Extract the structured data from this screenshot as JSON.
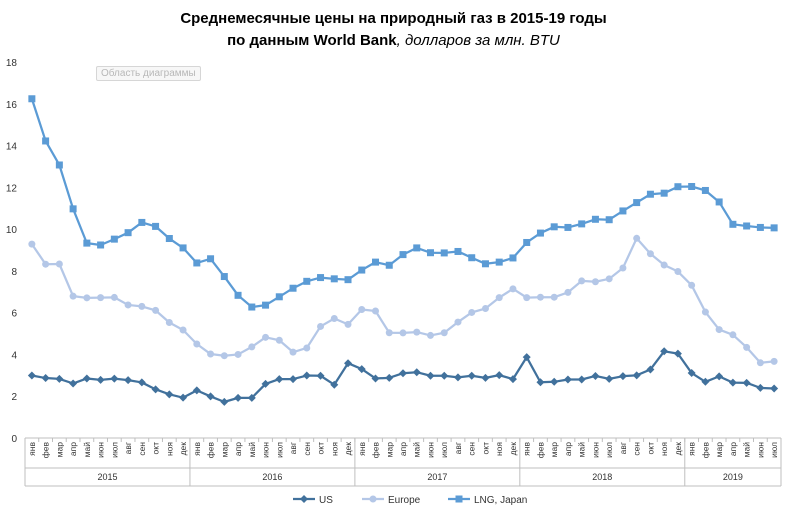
{
  "chart_data": {
    "type": "line",
    "title_line1": "Среднемесячные цены на природный газ в 2015-19 годы",
    "title_line2_bold": "по данным World Bank",
    "title_line2_italic": ", долларов за млн. BTU",
    "tooltip": "Область диаграммы",
    "ylim": [
      0,
      18
    ],
    "yticks": [
      0,
      2,
      4,
      6,
      8,
      10,
      12,
      14,
      16,
      18
    ],
    "grid": false,
    "legend_position": "bottom",
    "months": [
      "янв",
      "фев",
      "мар",
      "апр",
      "май",
      "июн",
      "июл",
      "авг",
      "сен",
      "окт",
      "ноя",
      "дек"
    ],
    "years": [
      "2015",
      "2016",
      "2017",
      "2018",
      "2019"
    ],
    "months_per_year": [
      12,
      12,
      12,
      12,
      7
    ],
    "series": [
      {
        "name": "US",
        "color": "#41719c",
        "marker": "diamond",
        "values": [
          2.99,
          2.87,
          2.83,
          2.61,
          2.85,
          2.78,
          2.84,
          2.77,
          2.66,
          2.33,
          2.09,
          1.93,
          2.28,
          1.99,
          1.73,
          1.92,
          1.92,
          2.59,
          2.82,
          2.82,
          2.99,
          2.98,
          2.55,
          3.58,
          3.3,
          2.85,
          2.88,
          3.1,
          3.15,
          2.98,
          2.98,
          2.9,
          2.98,
          2.88,
          3.01,
          2.82,
          3.87,
          2.67,
          2.69,
          2.8,
          2.8,
          2.97,
          2.83,
          2.96,
          3.0,
          3.28,
          4.15,
          4.04,
          3.11,
          2.69,
          2.95,
          2.65,
          2.64,
          2.4,
          2.37
        ]
      },
      {
        "name": "Europe",
        "color": "#b4c7e7",
        "marker": "circle",
        "values": [
          9.28,
          8.32,
          8.33,
          6.79,
          6.71,
          6.72,
          6.73,
          6.37,
          6.3,
          6.11,
          5.53,
          5.17,
          4.5,
          4.02,
          3.94,
          4.0,
          4.36,
          4.82,
          4.68,
          4.11,
          4.31,
          5.34,
          5.72,
          5.44,
          6.15,
          6.08,
          5.04,
          5.03,
          5.07,
          4.91,
          5.04,
          5.55,
          6.01,
          6.2,
          6.72,
          7.14,
          6.72,
          6.74,
          6.74,
          6.97,
          7.52,
          7.48,
          7.62,
          8.14,
          9.56,
          8.82,
          8.28,
          7.97,
          7.31,
          6.03,
          5.19,
          4.94,
          4.34,
          3.6,
          3.67
        ]
      },
      {
        "name": "LNG, Japan",
        "color": "#5b9bd5",
        "marker": "square",
        "values": [
          16.24,
          14.22,
          13.07,
          10.97,
          9.33,
          9.24,
          9.52,
          9.83,
          10.32,
          10.13,
          9.55,
          9.1,
          8.38,
          8.58,
          7.73,
          6.83,
          6.27,
          6.36,
          6.76,
          7.17,
          7.5,
          7.68,
          7.62,
          7.58,
          8.04,
          8.42,
          8.27,
          8.78,
          9.1,
          8.87,
          8.86,
          8.93,
          8.63,
          8.34,
          8.42,
          8.62,
          9.36,
          9.81,
          10.11,
          10.08,
          10.25,
          10.47,
          10.45,
          10.87,
          11.27,
          11.67,
          11.72,
          12.03,
          12.04,
          11.85,
          11.3,
          10.23,
          10.15,
          10.08,
          10.06
        ]
      }
    ]
  }
}
